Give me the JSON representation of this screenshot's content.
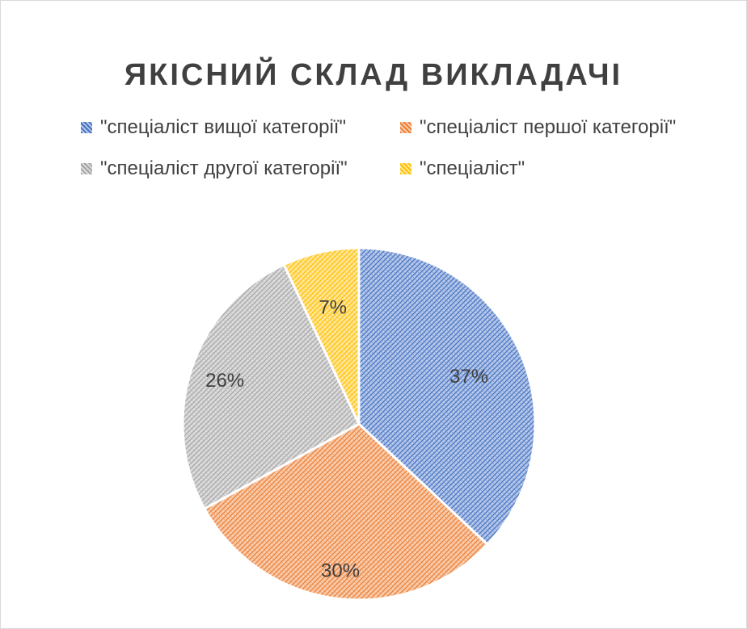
{
  "chart_data": {
    "type": "pie",
    "title": "ЯКІСНИЙ СКЛАД ВИКЛАДАЧІ",
    "categories": [
      "\"спеціаліст вищої категорії\"",
      "\"спеціаліст першої категорії\"",
      "\"спеціаліст другої категорії\"",
      "\"спеціаліст\""
    ],
    "values": [
      37,
      30,
      26,
      7
    ],
    "labels": [
      "37%",
      "30%",
      "26%",
      "7%"
    ],
    "colors": [
      "#4472C4",
      "#ED7D31",
      "#A5A5A5",
      "#FFC000"
    ],
    "legend_position": "top"
  }
}
